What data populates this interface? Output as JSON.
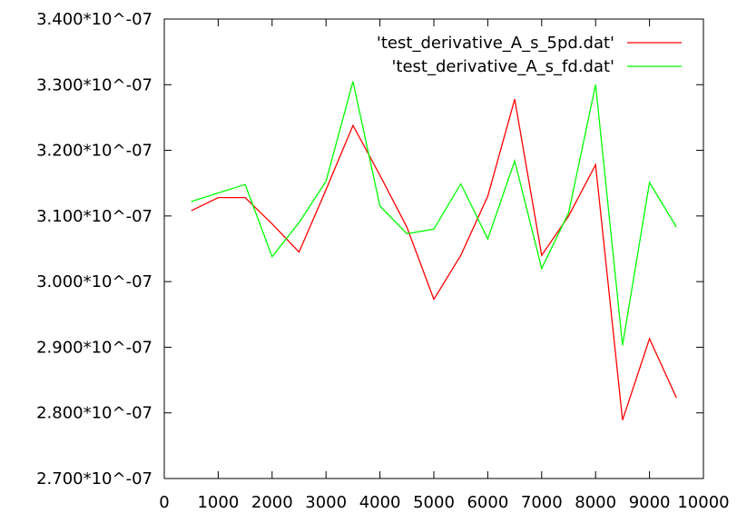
{
  "chart_data": {
    "type": "line",
    "title": "",
    "xlabel": "",
    "ylabel": "",
    "xlim": [
      0,
      10000
    ],
    "ylim": [
      2.7e-07,
      3.4e-07
    ],
    "xticks": [
      {
        "value": 0,
        "label": "0"
      },
      {
        "value": 1000,
        "label": "1000"
      },
      {
        "value": 2000,
        "label": "2000"
      },
      {
        "value": 3000,
        "label": "3000"
      },
      {
        "value": 4000,
        "label": "4000"
      },
      {
        "value": 5000,
        "label": "5000"
      },
      {
        "value": 6000,
        "label": "6000"
      },
      {
        "value": 7000,
        "label": "7000"
      },
      {
        "value": 8000,
        "label": "8000"
      },
      {
        "value": 9000,
        "label": "9000"
      },
      {
        "value": 10000,
        "label": "10000"
      }
    ],
    "yticks": [
      {
        "value": 2.7e-07,
        "label": "2.700*10^-07"
      },
      {
        "value": 2.8e-07,
        "label": "2.800*10^-07"
      },
      {
        "value": 2.9e-07,
        "label": "2.900*10^-07"
      },
      {
        "value": 3e-07,
        "label": "3.000*10^-07"
      },
      {
        "value": 3.1e-07,
        "label": "3.100*10^-07"
      },
      {
        "value": 3.2e-07,
        "label": "3.200*10^-07"
      },
      {
        "value": 3.3e-07,
        "label": "3.300*10^-07"
      },
      {
        "value": 3.4e-07,
        "label": "3.400*10^-07"
      }
    ],
    "legend_position": "top-right",
    "x": [
      500,
      1000,
      1500,
      2000,
      2500,
      3000,
      3500,
      4000,
      4500,
      5000,
      5500,
      6000,
      6500,
      7000,
      7500,
      8000,
      8500,
      9000,
      9500
    ],
    "series": [
      {
        "name": "'test_derivative_A_s_5pd.dat'",
        "color": "#ff0000",
        "values": [
          3.108e-07,
          3.128e-07,
          3.128e-07,
          3.088e-07,
          3.045e-07,
          3.14e-07,
          3.238e-07,
          3.162e-07,
          3.083e-07,
          2.973e-07,
          3.04e-07,
          3.13e-07,
          3.278e-07,
          3.04e-07,
          3.1e-07,
          3.178e-07,
          2.789e-07,
          2.913e-07,
          2.823e-07
        ]
      },
      {
        "name": "'test_derivative_A_s_fd.dat'",
        "color": "#00ff00",
        "values": [
          3.122e-07,
          3.135e-07,
          3.148e-07,
          3.038e-07,
          3.09e-07,
          3.153e-07,
          3.305e-07,
          3.115e-07,
          3.073e-07,
          3.08e-07,
          3.149e-07,
          3.065e-07,
          3.184e-07,
          3.02e-07,
          3.105e-07,
          3.3e-07,
          2.903e-07,
          3.151e-07,
          3.083e-07
        ]
      }
    ]
  }
}
